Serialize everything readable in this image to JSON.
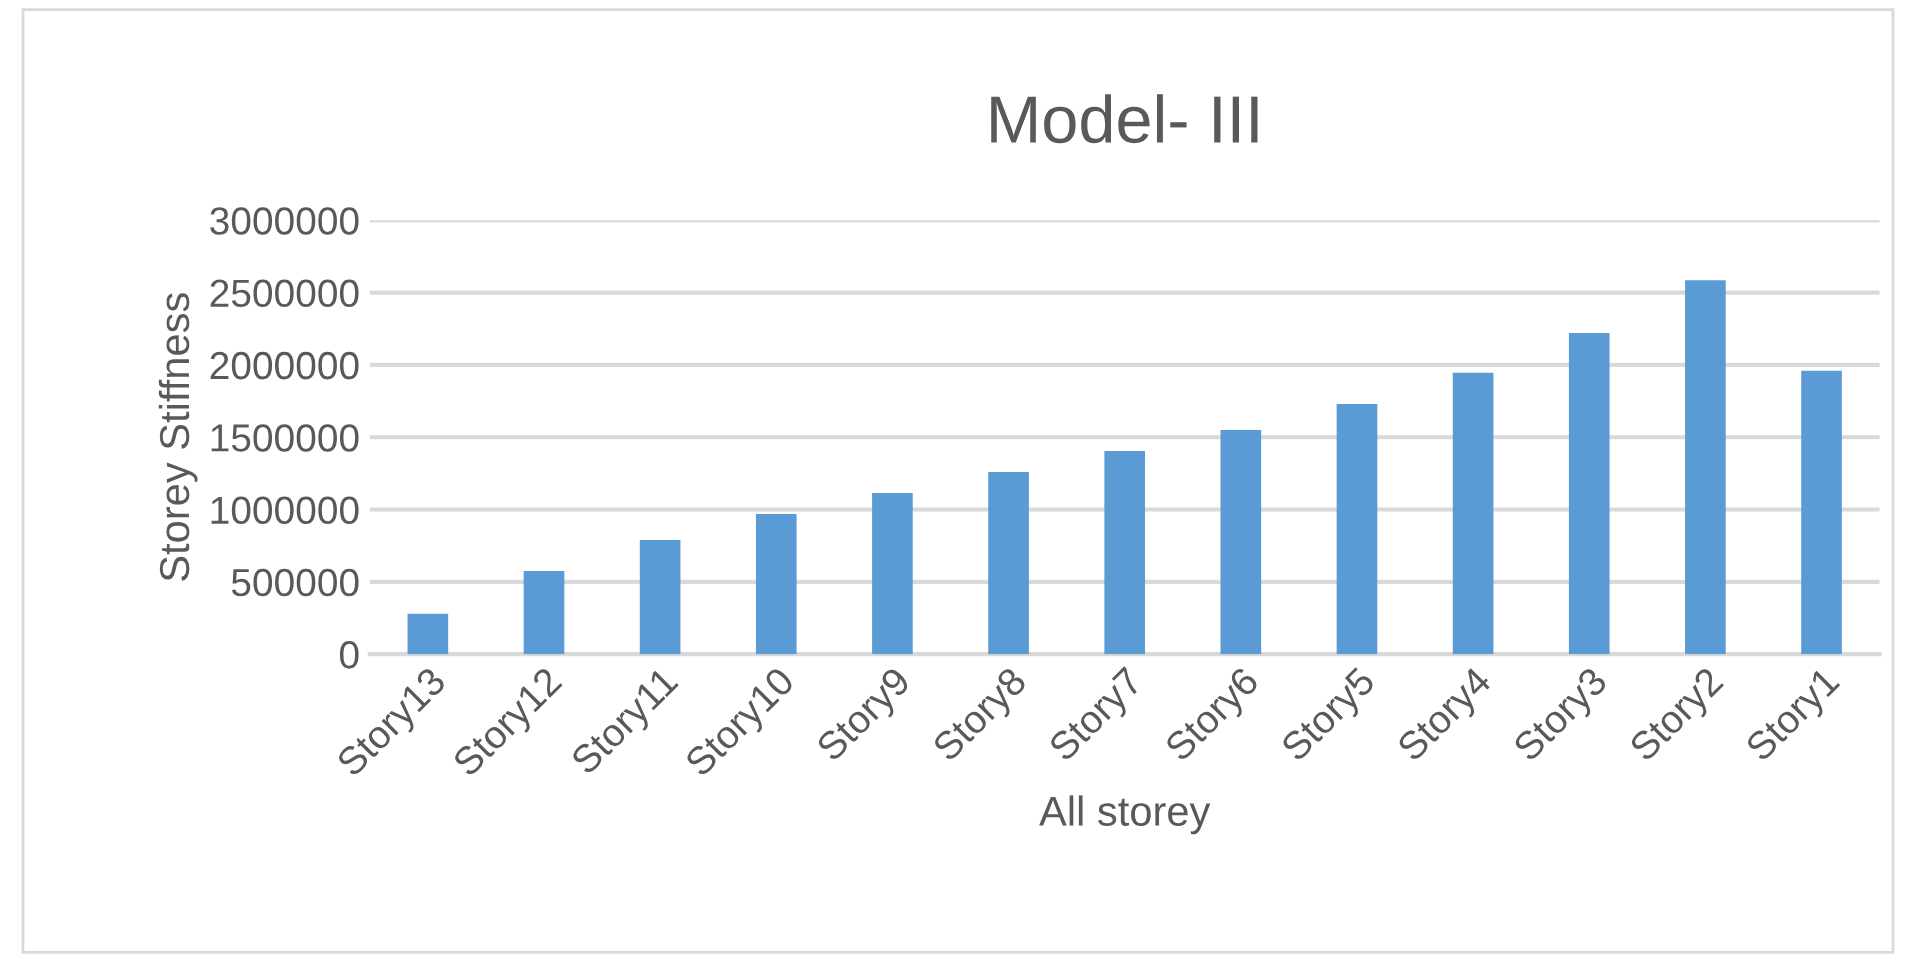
{
  "chart_data": {
    "type": "bar",
    "title": "Model- III",
    "xlabel": "All storey",
    "ylabel": "Storey Stiffness",
    "categories": [
      "Story13",
      "Story12",
      "Story11",
      "Story10",
      "Story9",
      "Story8",
      "Story7",
      "Story6",
      "Story5",
      "Story4",
      "Story3",
      "Story2",
      "Story1"
    ],
    "values": [
      280000,
      575000,
      790000,
      970000,
      1115000,
      1260000,
      1405000,
      1550000,
      1730000,
      1945000,
      2220000,
      2585000,
      1960000
    ],
    "color": "#5b9bd5",
    "ylim": [
      0,
      3000000
    ],
    "yticks": [
      0,
      500000,
      1000000,
      1500000,
      2000000,
      2500000,
      3000000
    ],
    "grid": "y"
  }
}
